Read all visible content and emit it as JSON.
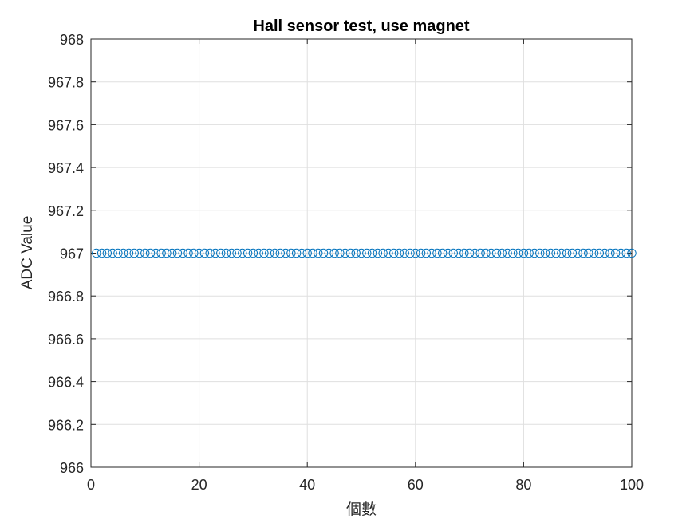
{
  "chart_data": {
    "type": "scatter",
    "title": "Hall sensor test, use magnet",
    "xlabel": "個數",
    "ylabel": "ADC Value",
    "xlim": [
      0,
      100
    ],
    "ylim": [
      966,
      968
    ],
    "xticks": [
      0,
      20,
      40,
      60,
      80,
      100
    ],
    "yticks": [
      966,
      966.2,
      966.4,
      966.6,
      966.8,
      967,
      967.2,
      967.4,
      967.6,
      967.8,
      968
    ],
    "xtick_labels": [
      "0",
      "20",
      "40",
      "60",
      "80",
      "100"
    ],
    "ytick_labels": [
      "966",
      "966.2",
      "966.4",
      "966.6",
      "966.8",
      "967",
      "967.2",
      "967.4",
      "967.6",
      "967.8",
      "968"
    ],
    "grid": true,
    "marker": "circle-open",
    "marker_color": "#0072BD",
    "series": [
      {
        "x": [
          1,
          2,
          3,
          4,
          5,
          6,
          7,
          8,
          9,
          10,
          11,
          12,
          13,
          14,
          15,
          16,
          17,
          18,
          19,
          20,
          21,
          22,
          23,
          24,
          25,
          26,
          27,
          28,
          29,
          30,
          31,
          32,
          33,
          34,
          35,
          36,
          37,
          38,
          39,
          40,
          41,
          42,
          43,
          44,
          45,
          46,
          47,
          48,
          49,
          50,
          51,
          52,
          53,
          54,
          55,
          56,
          57,
          58,
          59,
          60,
          61,
          62,
          63,
          64,
          65,
          66,
          67,
          68,
          69,
          70,
          71,
          72,
          73,
          74,
          75,
          76,
          77,
          78,
          79,
          80,
          81,
          82,
          83,
          84,
          85,
          86,
          87,
          88,
          89,
          90,
          91,
          92,
          93,
          94,
          95,
          96,
          97,
          98,
          99,
          100
        ],
        "y": [
          967,
          967,
          967,
          967,
          967,
          967,
          967,
          967,
          967,
          967,
          967,
          967,
          967,
          967,
          967,
          967,
          967,
          967,
          967,
          967,
          967,
          967,
          967,
          967,
          967,
          967,
          967,
          967,
          967,
          967,
          967,
          967,
          967,
          967,
          967,
          967,
          967,
          967,
          967,
          967,
          967,
          967,
          967,
          967,
          967,
          967,
          967,
          967,
          967,
          967,
          967,
          967,
          967,
          967,
          967,
          967,
          967,
          967,
          967,
          967,
          967,
          967,
          967,
          967,
          967,
          967,
          967,
          967,
          967,
          967,
          967,
          967,
          967,
          967,
          967,
          967,
          967,
          967,
          967,
          967,
          967,
          967,
          967,
          967,
          967,
          967,
          967,
          967,
          967,
          967,
          967,
          967,
          967,
          967,
          967,
          967,
          967,
          967,
          967,
          967
        ]
      }
    ]
  }
}
